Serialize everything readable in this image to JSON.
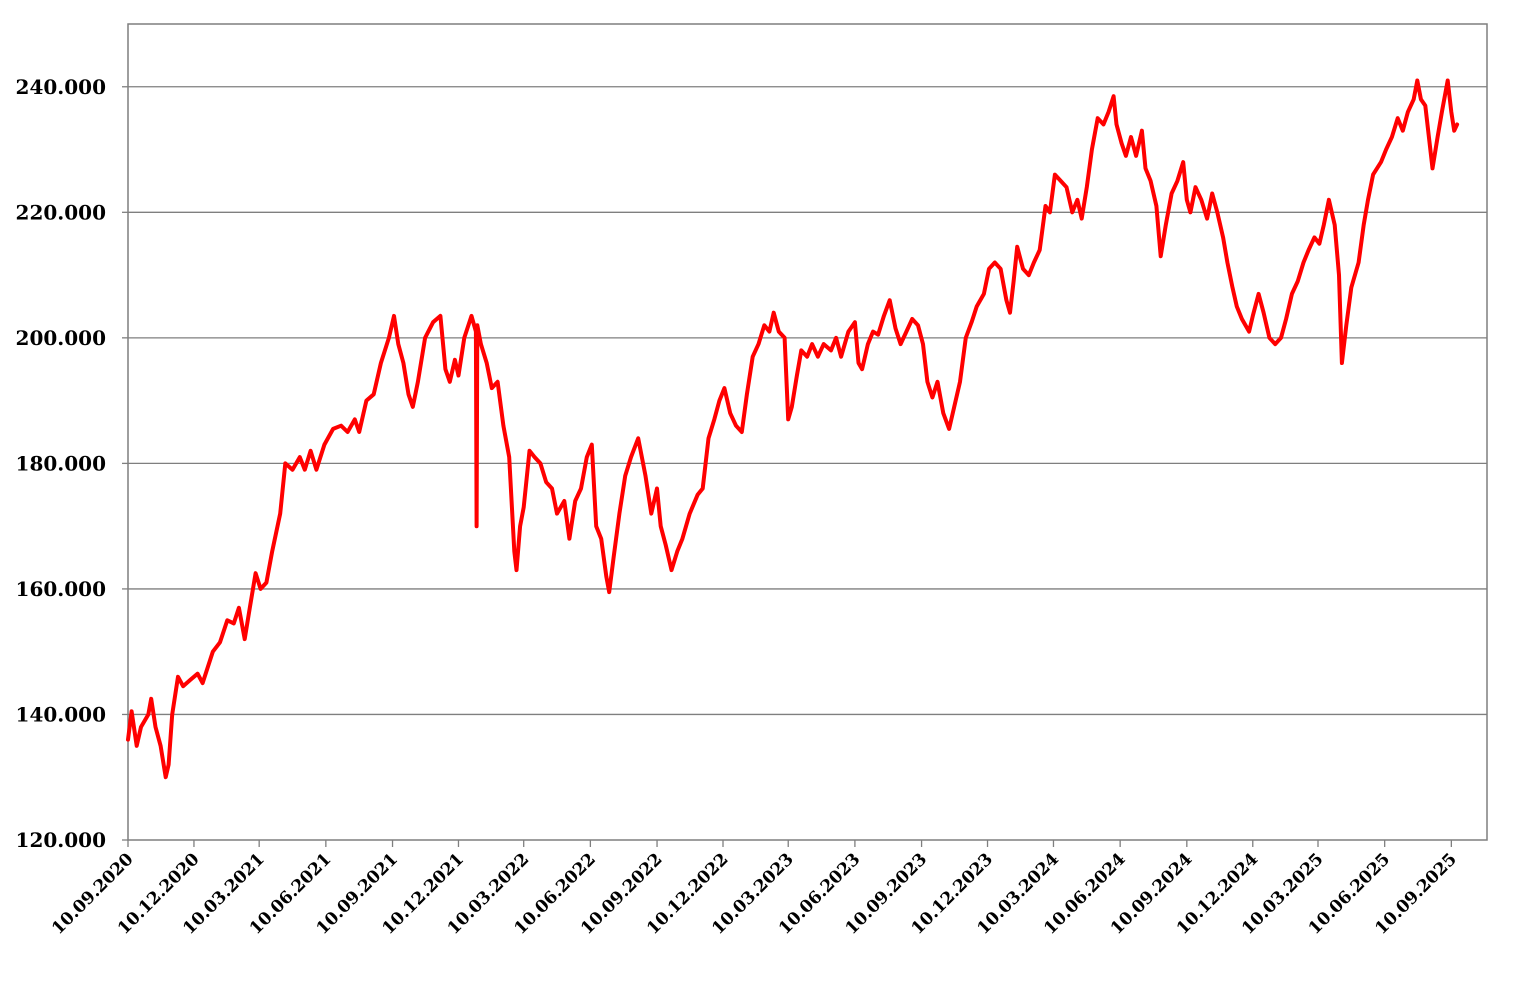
{
  "chart_data": {
    "type": "line",
    "title": "",
    "xlabel": "",
    "ylabel": "",
    "x_range": [
      "10.09.2020",
      "20.09.2025"
    ],
    "ylim": [
      120000,
      250000
    ],
    "y_ticks": [
      {
        "value": 120000,
        "label": "120.000"
      },
      {
        "value": 140000,
        "label": "140.000"
      },
      {
        "value": 160000,
        "label": "160.000"
      },
      {
        "value": 180000,
        "label": "180.000"
      },
      {
        "value": 200000,
        "label": "200.000"
      },
      {
        "value": 220000,
        "label": "220.000"
      },
      {
        "value": 240000,
        "label": "240.000"
      }
    ],
    "x_ticks": [
      "10.09.2020",
      "10.12.2020",
      "10.03.2021",
      "10.06.2021",
      "10.09.2021",
      "10.12.2021",
      "10.03.2022",
      "10.06.2022",
      "10.09.2022",
      "10.12.2022",
      "10.03.2023",
      "10.06.2023",
      "10.09.2023",
      "10.12.2023",
      "10.03.2024",
      "10.06.2024",
      "10.09.2024",
      "10.12.2024",
      "10.03.2025",
      "10.06.2025",
      "10.09.2025"
    ],
    "grid": {
      "horizontal": true,
      "vertical": false
    },
    "legend": "none",
    "series": [
      {
        "color": "#ff0000",
        "points": [
          [
            "10.09.2020",
            136000
          ],
          [
            "15.09.2020",
            140500
          ],
          [
            "22.09.2020",
            135000
          ],
          [
            "28.09.2020",
            138000
          ],
          [
            "08.10.2020",
            140000
          ],
          [
            "12.10.2020",
            142500
          ],
          [
            "18.10.2020",
            138000
          ],
          [
            "25.10.2020",
            135000
          ],
          [
            "01.11.2020",
            130000
          ],
          [
            "05.11.2020",
            132000
          ],
          [
            "10.11.2020",
            140000
          ],
          [
            "18.11.2020",
            146000
          ],
          [
            "25.11.2020",
            144500
          ],
          [
            "05.12.2020",
            145500
          ],
          [
            "15.12.2020",
            146500
          ],
          [
            "22.12.2020",
            145000
          ],
          [
            "05.01.2021",
            150000
          ],
          [
            "15.01.2021",
            151500
          ],
          [
            "25.01.2021",
            155000
          ],
          [
            "03.02.2021",
            154500
          ],
          [
            "10.02.2021",
            157000
          ],
          [
            "18.02.2021",
            152000
          ],
          [
            "25.02.2021",
            157000
          ],
          [
            "05.03.2021",
            162500
          ],
          [
            "12.03.2021",
            160000
          ],
          [
            "20.03.2021",
            161000
          ],
          [
            "28.03.2021",
            166000
          ],
          [
            "08.04.2021",
            172000
          ],
          [
            "15.04.2021",
            180000
          ],
          [
            "25.04.2021",
            179000
          ],
          [
            "05.05.2021",
            181000
          ],
          [
            "12.05.2021",
            179000
          ],
          [
            "20.05.2021",
            182000
          ],
          [
            "28.05.2021",
            179000
          ],
          [
            "08.06.2021",
            183000
          ],
          [
            "20.06.2021",
            185500
          ],
          [
            "01.07.2021",
            186000
          ],
          [
            "10.07.2021",
            185000
          ],
          [
            "20.07.2021",
            187000
          ],
          [
            "26.07.2021",
            185000
          ],
          [
            "05.08.2021",
            190000
          ],
          [
            "15.08.2021",
            191000
          ],
          [
            "25.08.2021",
            196000
          ],
          [
            "05.09.2021",
            200000
          ],
          [
            "12.09.2021",
            203500
          ],
          [
            "18.09.2021",
            199000
          ],
          [
            "25.09.2021",
            196000
          ],
          [
            "02.10.2021",
            191000
          ],
          [
            "08.10.2021",
            189000
          ],
          [
            "15.10.2021",
            193000
          ],
          [
            "25.10.2021",
            200000
          ],
          [
            "05.11.2021",
            202500
          ],
          [
            "15.11.2021",
            203500
          ],
          [
            "22.11.2021",
            195000
          ],
          [
            "28.11.2021",
            193000
          ],
          [
            "05.12.2021",
            196500
          ],
          [
            "10.12.2021",
            194000
          ],
          [
            "18.12.2021",
            200000
          ],
          [
            "28.12.2021",
            203500
          ],
          [
            "03.01.2022",
            201000
          ],
          [
            "04.01.2022",
            170000
          ],
          [
            "05.01.2022",
            202000
          ],
          [
            "10.01.2022",
            199000
          ],
          [
            "18.01.2022",
            196000
          ],
          [
            "25.01.2022",
            192000
          ],
          [
            "02.02.2022",
            193000
          ],
          [
            "10.02.2022",
            186000
          ],
          [
            "18.02.2022",
            181000
          ],
          [
            "25.02.2022",
            166000
          ],
          [
            "28.02.2022",
            163000
          ],
          [
            "05.03.2022",
            170000
          ],
          [
            "10.03.2022",
            173000
          ],
          [
            "18.03.2022",
            182000
          ],
          [
            "25.03.2022",
            181000
          ],
          [
            "02.04.2022",
            180000
          ],
          [
            "10.04.2022",
            177000
          ],
          [
            "18.04.2022",
            176000
          ],
          [
            "25.04.2022",
            172000
          ],
          [
            "05.05.2022",
            174000
          ],
          [
            "12.05.2022",
            168000
          ],
          [
            "20.05.2022",
            174000
          ],
          [
            "28.05.2022",
            176000
          ],
          [
            "05.06.2022",
            181000
          ],
          [
            "12.06.2022",
            183000
          ],
          [
            "18.06.2022",
            170000
          ],
          [
            "25.06.2022",
            168000
          ],
          [
            "02.07.2022",
            162000
          ],
          [
            "06.07.2022",
            159500
          ],
          [
            "12.07.2022",
            165000
          ],
          [
            "20.07.2022",
            172000
          ],
          [
            "28.07.2022",
            178000
          ],
          [
            "05.08.2022",
            181000
          ],
          [
            "15.08.2022",
            184000
          ],
          [
            "25.08.2022",
            178000
          ],
          [
            "02.09.2022",
            172000
          ],
          [
            "10.09.2022",
            176000
          ],
          [
            "15.09.2022",
            170000
          ],
          [
            "22.09.2022",
            167000
          ],
          [
            "30.09.2022",
            163000
          ],
          [
            "08.10.2022",
            166000
          ],
          [
            "15.10.2022",
            168000
          ],
          [
            "25.10.2022",
            172000
          ],
          [
            "05.11.2022",
            175000
          ],
          [
            "12.11.2022",
            176000
          ],
          [
            "20.11.2022",
            184000
          ],
          [
            "28.11.2022",
            187000
          ],
          [
            "05.12.2022",
            190000
          ],
          [
            "12.12.2022",
            192000
          ],
          [
            "20.12.2022",
            188000
          ],
          [
            "28.12.2022",
            186000
          ],
          [
            "05.01.2023",
            185000
          ],
          [
            "12.01.2023",
            191000
          ],
          [
            "20.01.2023",
            197000
          ],
          [
            "28.01.2023",
            199000
          ],
          [
            "05.02.2023",
            202000
          ],
          [
            "12.02.2023",
            201000
          ],
          [
            "18.02.2023",
            204000
          ],
          [
            "25.02.2023",
            201000
          ],
          [
            "05.03.2023",
            200000
          ],
          [
            "10.03.2023",
            187000
          ],
          [
            "15.03.2023",
            189000
          ],
          [
            "22.03.2023",
            194000
          ],
          [
            "28.03.2023",
            198000
          ],
          [
            "05.04.2023",
            197000
          ],
          [
            "12.04.2023",
            199000
          ],
          [
            "20.04.2023",
            197000
          ],
          [
            "28.04.2023",
            199000
          ],
          [
            "08.05.2023",
            198000
          ],
          [
            "15.05.2023",
            200000
          ],
          [
            "22.05.2023",
            197000
          ],
          [
            "01.06.2023",
            201000
          ],
          [
            "10.06.2023",
            202500
          ],
          [
            "15.06.2023",
            196000
          ],
          [
            "20.06.2023",
            195000
          ],
          [
            "28.06.2023",
            199000
          ],
          [
            "05.07.2023",
            201000
          ],
          [
            "12.07.2023",
            200500
          ],
          [
            "20.07.2023",
            203500
          ],
          [
            "28.07.2023",
            206000
          ],
          [
            "05.08.2023",
            201500
          ],
          [
            "12.08.2023",
            199000
          ],
          [
            "20.08.2023",
            201000
          ],
          [
            "28.08.2023",
            203000
          ],
          [
            "05.09.2023",
            202000
          ],
          [
            "12.09.2023",
            199000
          ],
          [
            "18.09.2023",
            193000
          ],
          [
            "25.09.2023",
            190500
          ],
          [
            "02.10.2023",
            193000
          ],
          [
            "10.10.2023",
            188000
          ],
          [
            "18.10.2023",
            185500
          ],
          [
            "25.10.2023",
            189000
          ],
          [
            "02.11.2023",
            193000
          ],
          [
            "10.11.2023",
            200000
          ],
          [
            "18.11.2023",
            202500
          ],
          [
            "25.11.2023",
            205000
          ],
          [
            "05.12.2023",
            207000
          ],
          [
            "12.12.2023",
            211000
          ],
          [
            "20.12.2023",
            212000
          ],
          [
            "28.12.2023",
            211000
          ],
          [
            "05.01.2024",
            206000
          ],
          [
            "10.01.2024",
            204000
          ],
          [
            "15.01.2024",
            209000
          ],
          [
            "20.01.2024",
            214500
          ],
          [
            "28.01.2024",
            211000
          ],
          [
            "05.02.2024",
            210000
          ],
          [
            "12.02.2024",
            212000
          ],
          [
            "20.02.2024",
            214000
          ],
          [
            "28.02.2024",
            221000
          ],
          [
            "05.03.2024",
            220000
          ],
          [
            "12.03.2024",
            226000
          ],
          [
            "20.03.2024",
            225000
          ],
          [
            "28.03.2024",
            224000
          ],
          [
            "05.04.2024",
            220000
          ],
          [
            "12.04.2024",
            222000
          ],
          [
            "18.04.2024",
            219000
          ],
          [
            "25.04.2024",
            224000
          ],
          [
            "02.05.2024",
            230000
          ],
          [
            "10.05.2024",
            235000
          ],
          [
            "18.05.2024",
            234000
          ],
          [
            "25.05.2024",
            236000
          ],
          [
            "01.06.2024",
            238500
          ],
          [
            "05.06.2024",
            234000
          ],
          [
            "12.06.2024",
            231000
          ],
          [
            "18.06.2024",
            229000
          ],
          [
            "25.06.2024",
            232000
          ],
          [
            "02.07.2024",
            229000
          ],
          [
            "10.07.2024",
            233000
          ],
          [
            "15.07.2024",
            227000
          ],
          [
            "22.07.2024",
            225000
          ],
          [
            "30.07.2024",
            221000
          ],
          [
            "05.08.2024",
            213000
          ],
          [
            "12.08.2024",
            218000
          ],
          [
            "20.08.2024",
            223000
          ],
          [
            "28.08.2024",
            225000
          ],
          [
            "05.09.2024",
            228000
          ],
          [
            "10.09.2024",
            222000
          ],
          [
            "15.09.2024",
            220000
          ],
          [
            "22.09.2024",
            224000
          ],
          [
            "30.09.2024",
            222000
          ],
          [
            "08.10.2024",
            219000
          ],
          [
            "15.10.2024",
            223000
          ],
          [
            "22.10.2024",
            220000
          ],
          [
            "30.10.2024",
            216000
          ],
          [
            "05.11.2024",
            212000
          ],
          [
            "12.11.2024",
            208000
          ],
          [
            "18.11.2024",
            205000
          ],
          [
            "25.11.2024",
            203000
          ],
          [
            "05.12.2024",
            201000
          ],
          [
            "10.12.2024",
            203500
          ],
          [
            "18.12.2024",
            207000
          ],
          [
            "25.12.2024",
            204000
          ],
          [
            "02.01.2025",
            200000
          ],
          [
            "10.01.2025",
            199000
          ],
          [
            "18.01.2025",
            200000
          ],
          [
            "25.01.2025",
            203000
          ],
          [
            "02.02.2025",
            207000
          ],
          [
            "10.02.2025",
            209000
          ],
          [
            "18.02.2025",
            212000
          ],
          [
            "25.02.2025",
            214000
          ],
          [
            "05.03.2025",
            216000
          ],
          [
            "12.03.2025",
            215000
          ],
          [
            "18.03.2025",
            218000
          ],
          [
            "25.03.2025",
            222000
          ],
          [
            "02.04.2025",
            218000
          ],
          [
            "08.04.2025",
            210000
          ],
          [
            "12.04.2025",
            196000
          ],
          [
            "18.04.2025",
            202000
          ],
          [
            "25.04.2025",
            208000
          ],
          [
            "05.05.2025",
            212000
          ],
          [
            "12.05.2025",
            218000
          ],
          [
            "18.05.2025",
            222000
          ],
          [
            "25.05.2025",
            226000
          ],
          [
            "05.06.2025",
            228000
          ],
          [
            "12.06.2025",
            230000
          ],
          [
            "20.06.2025",
            232000
          ],
          [
            "28.06.2025",
            235000
          ],
          [
            "05.07.2025",
            233000
          ],
          [
            "12.07.2025",
            236000
          ],
          [
            "20.07.2025",
            238000
          ],
          [
            "25.07.2025",
            241000
          ],
          [
            "30.07.2025",
            238000
          ],
          [
            "05.08.2025",
            237000
          ],
          [
            "10.08.2025",
            232000
          ],
          [
            "15.08.2025",
            227000
          ],
          [
            "22.08.2025",
            232000
          ],
          [
            "28.08.2025",
            236000
          ],
          [
            "05.09.2025",
            241000
          ],
          [
            "10.09.2025",
            236000
          ],
          [
            "14.09.2025",
            233000
          ],
          [
            "18.09.2025",
            234000
          ]
        ]
      }
    ]
  }
}
